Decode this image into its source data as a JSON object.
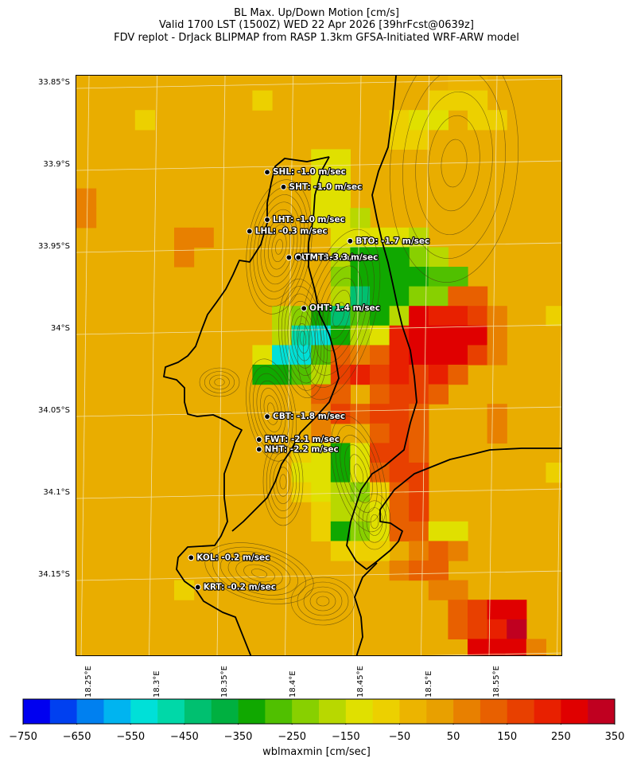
{
  "header": {
    "line1": "BL Max. Up/Down Motion [cm/s]",
    "line2": "Valid 1700 LST (1500Z) WED 22 Apr 2026 [39hrFcst@0639z]",
    "line3": "FDV replot - DrJack BLIPMAP from RASP 1.3km GFSA-Initiated WRF-ARW model"
  },
  "map": {
    "projection": "lat/lon",
    "lat_labels": [
      "33.85°S",
      "33.9°S",
      "33.95°S",
      "34°S",
      "34.05°S",
      "34.1°S",
      "34.15°S"
    ],
    "lon_labels": [
      "18.25°E",
      "18.3°E",
      "18.35°E",
      "18.4°E",
      "18.45°E",
      "18.5°E",
      "18.55°E"
    ],
    "stations": [
      {
        "id": "SHL",
        "label": "SHL: -1.0 m/sec",
        "lat": -33.904,
        "lon": 18.381
      },
      {
        "id": "SHT",
        "label": "SHT: -1.0 m/sec",
        "lat": -33.913,
        "lon": 18.393
      },
      {
        "id": "LHT",
        "label": "LHT: -1.0 m/sec",
        "lat": -33.933,
        "lon": 18.381
      },
      {
        "id": "LHL",
        "label": "LHL: -0.3 m/sec",
        "lat": -33.94,
        "lon": 18.368
      },
      {
        "id": "BTO",
        "label": "BTO: -1.7 m/sec",
        "lat": -33.946,
        "lon": 18.442
      },
      {
        "id": "GUT",
        "label": "GUT: -3.8 m/sec",
        "lat": -33.956,
        "lon": 18.397
      },
      {
        "id": "TMT",
        "label": "TMT: -3.3 m/sec",
        "lat": -33.956,
        "lon": 18.404
      },
      {
        "id": "OHT",
        "label": "OHT: 1.4 m/sec",
        "lat": -33.987,
        "lon": 18.408
      },
      {
        "id": "CBT",
        "label": "CBT: -1.8 m/sec",
        "lat": -34.053,
        "lon": 18.381
      },
      {
        "id": "FWT",
        "label": "FWT: -2.1 m/sec",
        "lat": -34.067,
        "lon": 18.375
      },
      {
        "id": "NHT",
        "label": "NHT: -2.2 m/sec",
        "lat": -34.073,
        "lon": 18.375
      },
      {
        "id": "KOL",
        "label": "KOL: -0.2 m/sec",
        "lat": -34.139,
        "lon": 18.325
      },
      {
        "id": "KRT",
        "label": "KRT: -0.2 m/sec",
        "lat": -34.157,
        "lon": 18.33
      }
    ],
    "field_cells": [
      {
        "r": 0,
        "c": 19,
        "v": 0
      },
      {
        "r": 0,
        "c": 20,
        "v": 0
      },
      {
        "r": 1,
        "c": 18,
        "v": -100
      },
      {
        "r": 1,
        "c": 19,
        "v": -100
      },
      {
        "r": 1,
        "c": 20,
        "v": -100
      },
      {
        "r": 2,
        "c": 20,
        "v": -100
      },
      {
        "r": 2,
        "c": 21,
        "v": -100
      },
      {
        "r": 2,
        "c": 16,
        "v": -100
      },
      {
        "r": 3,
        "c": 16,
        "v": -100
      },
      {
        "r": 3,
        "c": 17,
        "v": -100
      },
      {
        "r": 2,
        "c": 17,
        "v": -150
      },
      {
        "r": 2,
        "c": 18,
        "v": -150
      },
      {
        "r": 4,
        "c": 12,
        "v": -150
      },
      {
        "r": 4,
        "c": 13,
        "v": -150
      },
      {
        "r": 5,
        "c": 12,
        "v": -150
      },
      {
        "r": 5,
        "c": 13,
        "v": -150
      },
      {
        "r": 6,
        "c": 12,
        "v": -150
      },
      {
        "r": 6,
        "c": 13,
        "v": -150
      },
      {
        "r": 7,
        "c": 12,
        "v": -150
      },
      {
        "r": 7,
        "c": 13,
        "v": -150
      },
      {
        "r": 8,
        "c": 13,
        "v": -150
      },
      {
        "r": 8,
        "c": 14,
        "v": -150
      },
      {
        "r": 8,
        "c": 15,
        "v": -150
      },
      {
        "r": 8,
        "c": 16,
        "v": -150
      },
      {
        "r": 7,
        "c": 14,
        "v": -200
      },
      {
        "r": 8,
        "c": 17,
        "v": -200
      },
      {
        "r": 9,
        "c": 18,
        "v": -200
      },
      {
        "r": 9,
        "c": 17,
        "v": -250
      },
      {
        "r": 9,
        "c": 13,
        "v": -200
      },
      {
        "r": 9,
        "c": 14,
        "v": -350
      },
      {
        "r": 9,
        "c": 15,
        "v": -350
      },
      {
        "r": 9,
        "c": 16,
        "v": -350
      },
      {
        "r": 10,
        "c": 14,
        "v": -350
      },
      {
        "r": 10,
        "c": 15,
        "v": -350
      },
      {
        "r": 10,
        "c": 16,
        "v": -350
      },
      {
        "r": 10,
        "c": 17,
        "v": -350
      },
      {
        "r": 10,
        "c": 18,
        "v": -300
      },
      {
        "r": 10,
        "c": 19,
        "v": -300
      },
      {
        "r": 10,
        "c": 13,
        "v": -250
      },
      {
        "r": 11,
        "c": 13,
        "v": -200
      },
      {
        "r": 11,
        "c": 14,
        "v": -450
      },
      {
        "r": 11,
        "c": 15,
        "v": -350
      },
      {
        "r": 11,
        "c": 16,
        "v": -350
      },
      {
        "r": 11,
        "c": 17,
        "v": -250
      },
      {
        "r": 11,
        "c": 18,
        "v": -250
      },
      {
        "r": 11,
        "c": 19,
        "v": 100
      },
      {
        "r": 11,
        "c": 20,
        "v": 100
      },
      {
        "r": 12,
        "c": 10,
        "v": -200
      },
      {
        "r": 12,
        "c": 11,
        "v": -250
      },
      {
        "r": 12,
        "c": 12,
        "v": -350
      },
      {
        "r": 12,
        "c": 13,
        "v": -450
      },
      {
        "r": 12,
        "c": 14,
        "v": -300
      },
      {
        "r": 12,
        "c": 15,
        "v": -350
      },
      {
        "r": 12,
        "c": 16,
        "v": -200
      },
      {
        "r": 12,
        "c": 17,
        "v": 250
      },
      {
        "r": 12,
        "c": 18,
        "v": 200
      },
      {
        "r": 12,
        "c": 19,
        "v": 200
      },
      {
        "r": 12,
        "c": 20,
        "v": 150
      },
      {
        "r": 13,
        "c": 10,
        "v": -200
      },
      {
        "r": 13,
        "c": 11,
        "v": -500
      },
      {
        "r": 13,
        "c": 12,
        "v": -550
      },
      {
        "r": 13,
        "c": 13,
        "v": -350
      },
      {
        "r": 13,
        "c": 14,
        "v": -200
      },
      {
        "r": 13,
        "c": 15,
        "v": -150
      },
      {
        "r": 13,
        "c": 16,
        "v": 200
      },
      {
        "r": 13,
        "c": 17,
        "v": 250
      },
      {
        "r": 13,
        "c": 18,
        "v": 250
      },
      {
        "r": 13,
        "c": 19,
        "v": 250
      },
      {
        "r": 13,
        "c": 20,
        "v": 250
      },
      {
        "r": 14,
        "c": 9,
        "v": -150
      },
      {
        "r": 14,
        "c": 10,
        "v": -550
      },
      {
        "r": 14,
        "c": 11,
        "v": -550
      },
      {
        "r": 14,
        "c": 12,
        "v": -300
      },
      {
        "r": 14,
        "c": 13,
        "v": 100
      },
      {
        "r": 14,
        "c": 14,
        "v": 50
      },
      {
        "r": 14,
        "c": 15,
        "v": 100
      },
      {
        "r": 14,
        "c": 16,
        "v": 200
      },
      {
        "r": 14,
        "c": 17,
        "v": 250
      },
      {
        "r": 14,
        "c": 18,
        "v": 250
      },
      {
        "r": 14,
        "c": 19,
        "v": 250
      },
      {
        "r": 14,
        "c": 20,
        "v": 150
      },
      {
        "r": 15,
        "c": 9,
        "v": -350
      },
      {
        "r": 15,
        "c": 10,
        "v": -350
      },
      {
        "r": 15,
        "c": 11,
        "v": -300
      },
      {
        "r": 15,
        "c": 12,
        "v": -200
      },
      {
        "r": 15,
        "c": 13,
        "v": 150
      },
      {
        "r": 15,
        "c": 14,
        "v": 200
      },
      {
        "r": 15,
        "c": 15,
        "v": 150
      },
      {
        "r": 15,
        "c": 16,
        "v": 200
      },
      {
        "r": 15,
        "c": 17,
        "v": 150
      },
      {
        "r": 15,
        "c": 18,
        "v": 200
      },
      {
        "r": 15,
        "c": 19,
        "v": 100
      },
      {
        "r": 16,
        "c": 12,
        "v": 100
      },
      {
        "r": 16,
        "c": 13,
        "v": 100
      },
      {
        "r": 16,
        "c": 15,
        "v": 100
      },
      {
        "r": 16,
        "c": 16,
        "v": 150
      },
      {
        "r": 16,
        "c": 17,
        "v": 150
      },
      {
        "r": 16,
        "c": 18,
        "v": 100
      },
      {
        "r": 17,
        "c": 12,
        "v": 50
      },
      {
        "r": 17,
        "c": 13,
        "v": 150
      },
      {
        "r": 17,
        "c": 14,
        "v": 100
      },
      {
        "r": 17,
        "c": 15,
        "v": 150
      },
      {
        "r": 17,
        "c": 16,
        "v": 150
      },
      {
        "r": 17,
        "c": 17,
        "v": 100
      },
      {
        "r": 18,
        "c": 12,
        "v": 50
      },
      {
        "r": 18,
        "c": 15,
        "v": 100
      },
      {
        "r": 18,
        "c": 16,
        "v": 150
      },
      {
        "r": 18,
        "c": 17,
        "v": 100
      },
      {
        "r": 19,
        "c": 11,
        "v": -100
      },
      {
        "r": 19,
        "c": 12,
        "v": -150
      },
      {
        "r": 19,
        "c": 13,
        "v": -350
      },
      {
        "r": 19,
        "c": 14,
        "v": -150
      },
      {
        "r": 19,
        "c": 15,
        "v": 150
      },
      {
        "r": 19,
        "c": 16,
        "v": 150
      },
      {
        "r": 19,
        "c": 17,
        "v": 100
      },
      {
        "r": 20,
        "c": 11,
        "v": -150
      },
      {
        "r": 20,
        "c": 12,
        "v": -150
      },
      {
        "r": 20,
        "c": 13,
        "v": -350
      },
      {
        "r": 20,
        "c": 14,
        "v": -150
      },
      {
        "r": 20,
        "c": 15,
        "v": 100
      },
      {
        "r": 20,
        "c": 16,
        "v": 150
      },
      {
        "r": 20,
        "c": 17,
        "v": 150
      },
      {
        "r": 21,
        "c": 11,
        "v": -100
      },
      {
        "r": 21,
        "c": 12,
        "v": -150
      },
      {
        "r": 21,
        "c": 13,
        "v": -200
      },
      {
        "r": 21,
        "c": 14,
        "v": -250
      },
      {
        "r": 21,
        "c": 15,
        "v": -100
      },
      {
        "r": 21,
        "c": 16,
        "v": 100
      },
      {
        "r": 21,
        "c": 17,
        "v": 150
      },
      {
        "r": 22,
        "c": 12,
        "v": -100
      },
      {
        "r": 22,
        "c": 13,
        "v": -200
      },
      {
        "r": 22,
        "c": 14,
        "v": -200
      },
      {
        "r": 22,
        "c": 15,
        "v": -150
      },
      {
        "r": 22,
        "c": 16,
        "v": 100
      },
      {
        "r": 22,
        "c": 17,
        "v": 150
      },
      {
        "r": 23,
        "c": 12,
        "v": -100
      },
      {
        "r": 23,
        "c": 13,
        "v": -350
      },
      {
        "r": 23,
        "c": 14,
        "v": -250
      },
      {
        "r": 23,
        "c": 15,
        "v": -150
      },
      {
        "r": 23,
        "c": 16,
        "v": 100
      },
      {
        "r": 23,
        "c": 17,
        "v": 100
      },
      {
        "r": 23,
        "c": 18,
        "v": -150
      },
      {
        "r": 23,
        "c": 19,
        "v": -150
      },
      {
        "r": 24,
        "c": 13,
        "v": -100
      },
      {
        "r": 24,
        "c": 14,
        "v": -100
      },
      {
        "r": 24,
        "c": 15,
        "v": -100
      },
      {
        "r": 24,
        "c": 17,
        "v": 50
      },
      {
        "r": 24,
        "c": 18,
        "v": 100
      },
      {
        "r": 24,
        "c": 19,
        "v": 50
      },
      {
        "r": 25,
        "c": 16,
        "v": 50
      },
      {
        "r": 25,
        "c": 17,
        "v": 100
      },
      {
        "r": 25,
        "c": 18,
        "v": 100
      },
      {
        "r": 26,
        "c": 18,
        "v": 50
      },
      {
        "r": 26,
        "c": 19,
        "v": 50
      },
      {
        "r": 27,
        "c": 19,
        "v": 100
      },
      {
        "r": 27,
        "c": 20,
        "v": 150
      },
      {
        "r": 27,
        "c": 21,
        "v": 250
      },
      {
        "r": 27,
        "c": 22,
        "v": 250
      },
      {
        "r": 28,
        "c": 19,
        "v": 100
      },
      {
        "r": 28,
        "c": 20,
        "v": 150
      },
      {
        "r": 28,
        "c": 21,
        "v": 200
      },
      {
        "r": 28,
        "c": 22,
        "v": 300
      },
      {
        "r": 29,
        "c": 20,
        "v": 250
      },
      {
        "r": 29,
        "c": 21,
        "v": 250
      },
      {
        "r": 29,
        "c": 22,
        "v": 250
      },
      {
        "r": 29,
        "c": 23,
        "v": 50
      },
      {
        "r": 30,
        "c": 19,
        "v": 100
      },
      {
        "r": 30,
        "c": 20,
        "v": 100
      },
      {
        "r": 30,
        "c": 21,
        "v": 50
      },
      {
        "r": 31,
        "c": 14,
        "v": -100
      },
      {
        "r": 31,
        "c": 15,
        "v": -100
      },
      {
        "r": 32,
        "c": 19,
        "v": 100
      },
      {
        "r": 33,
        "c": 19,
        "v": 100
      },
      {
        "r": 33,
        "c": 20,
        "v": 100
      },
      {
        "r": 33,
        "c": 15,
        "v": 50
      },
      {
        "r": 33,
        "c": 16,
        "v": 50
      },
      {
        "r": 34,
        "c": 14,
        "v": 50
      },
      {
        "r": 34,
        "c": 15,
        "v": 50
      },
      {
        "r": 34,
        "c": 16,
        "v": 100
      },
      {
        "r": 34,
        "c": 17,
        "v": 100
      },
      {
        "r": 34,
        "c": 18,
        "v": 100
      },
      {
        "r": 6,
        "c": 0,
        "v": 50
      },
      {
        "r": 7,
        "c": 0,
        "v": 50
      },
      {
        "r": 8,
        "c": 5,
        "v": 50
      },
      {
        "r": 8,
        "c": 6,
        "v": 50
      },
      {
        "r": 9,
        "c": 5,
        "v": 50
      },
      {
        "r": 4,
        "c": 25,
        "v": 50
      },
      {
        "r": 5,
        "c": 25,
        "v": 50
      },
      {
        "r": 12,
        "c": 21,
        "v": 50
      },
      {
        "r": 13,
        "c": 21,
        "v": 50
      },
      {
        "r": 14,
        "c": 21,
        "v": 50
      },
      {
        "r": 17,
        "c": 21,
        "v": 50
      },
      {
        "r": 18,
        "c": 21,
        "v": 50
      },
      {
        "r": 5,
        "c": 26,
        "v": -100
      },
      {
        "r": 12,
        "c": 24,
        "v": -100
      },
      {
        "r": 16,
        "c": 26,
        "v": -100
      },
      {
        "r": 20,
        "c": 24,
        "v": -100
      },
      {
        "r": 24,
        "c": 27,
        "v": -100
      },
      {
        "r": 30,
        "c": 27,
        "v": -100
      },
      {
        "r": 2,
        "c": 3,
        "v": -100
      },
      {
        "r": 26,
        "c": 5,
        "v": -100
      },
      {
        "r": 1,
        "c": 9,
        "v": -100
      }
    ]
  },
  "colorbar": {
    "label": "wblmaxmin [cm/sec]",
    "ticks": [
      "−750",
      "−650",
      "−550",
      "−450",
      "−350",
      "−250",
      "−150",
      "−50",
      "50",
      "150",
      "250",
      "350"
    ],
    "colors": [
      "#0000f0",
      "#0040f0",
      "#0080f0",
      "#00b4f0",
      "#00e0d8",
      "#00d8a8",
      "#00c070",
      "#00b040",
      "#10a800",
      "#50c000",
      "#88d000",
      "#b8d800",
      "#e0e000",
      "#ecd000",
      "#ecb400",
      "#e8a000",
      "#e88000",
      "#e86000",
      "#e84000",
      "#e82000",
      "#e00000",
      "#c00020"
    ],
    "min": -750,
    "max": 350
  }
}
